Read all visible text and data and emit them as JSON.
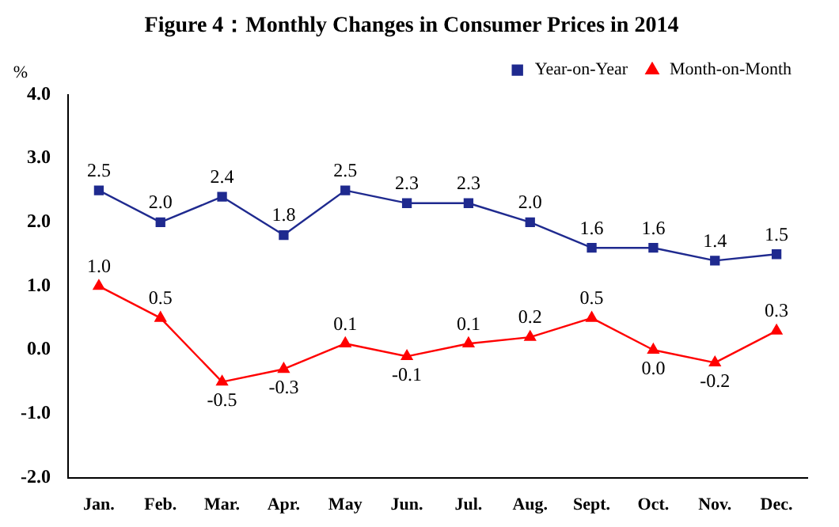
{
  "chart_data": {
    "type": "line",
    "title": "Figure 4：Monthly Changes in Consumer Prices in 2014",
    "ylabel": "%",
    "categories": [
      "Jan.",
      "Feb.",
      "Mar.",
      "Apr.",
      "May",
      "Jun.",
      "Jul.",
      "Aug.",
      "Sept.",
      "Oct.",
      "Nov.",
      "Dec."
    ],
    "series": [
      {
        "name": "Year-on-Year",
        "color": "#1f2a8f",
        "marker": "square",
        "values": [
          2.5,
          2.0,
          2.4,
          1.8,
          2.5,
          2.3,
          2.3,
          2.0,
          1.6,
          1.6,
          1.4,
          1.5
        ],
        "value_labels": [
          "2.5",
          "2.0",
          "2.4",
          "1.8",
          "2.5",
          "2.3",
          "2.3",
          "2.0",
          "1.6",
          "1.6",
          "1.4",
          "1.5"
        ]
      },
      {
        "name": "Month-on-Month",
        "color": "#ff0000",
        "marker": "triangle",
        "values": [
          1.0,
          0.5,
          -0.5,
          -0.3,
          0.1,
          -0.1,
          0.1,
          0.2,
          0.5,
          0.0,
          -0.2,
          0.3
        ],
        "value_labels": [
          "1.0",
          "0.5",
          "-0.5",
          "-0.3",
          "0.1",
          "-0.1",
          "0.1",
          "0.2",
          "0.5",
          "0.0",
          "-0.2",
          "0.3"
        ]
      }
    ],
    "ylim": [
      -2,
      4
    ],
    "yticks": [
      {
        "value": -2,
        "label": "-2.0"
      },
      {
        "value": -1,
        "label": "-1.0"
      },
      {
        "value": 0,
        "label": "0.0"
      },
      {
        "value": 1,
        "label": "1.0"
      },
      {
        "value": 2,
        "label": "2.0"
      },
      {
        "value": 3,
        "label": "3.0"
      },
      {
        "value": 4,
        "label": "4.0"
      }
    ],
    "grid": false,
    "legend": "top right",
    "line_style": "solid"
  }
}
